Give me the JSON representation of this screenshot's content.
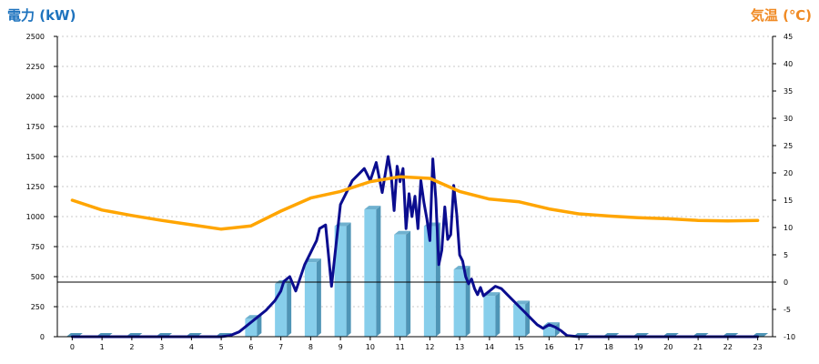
{
  "chart_data": {
    "type": "bar",
    "title": "",
    "left_axis_title": "電力 (kW)",
    "right_axis_title": "気温 (℃)",
    "categories": [
      "0",
      "1",
      "2",
      "3",
      "4",
      "5",
      "6",
      "7",
      "8",
      "9",
      "10",
      "11",
      "12",
      "13",
      "14",
      "15",
      "16",
      "17",
      "18",
      "19",
      "20",
      "21",
      "22",
      "23"
    ],
    "y_left": {
      "min": 0,
      "max": 2500,
      "ticks": [
        0,
        250,
        500,
        750,
        1000,
        1250,
        1500,
        1750,
        2000,
        2250,
        2500
      ]
    },
    "y_right": {
      "min": -10,
      "max": 45,
      "ticks": [
        -10,
        -5,
        0,
        5,
        10,
        15,
        20,
        25,
        30,
        35,
        40,
        45
      ]
    },
    "grid": true,
    "series": [
      {
        "kind": "bar",
        "axis": "left",
        "values": [
          0,
          0,
          0,
          0,
          0,
          0,
          150,
          440,
          620,
          920,
          1060,
          850,
          920,
          560,
          340,
          270,
          90,
          0,
          0,
          0,
          0,
          0,
          0,
          0
        ]
      },
      {
        "kind": "line",
        "axis": "left",
        "x": [
          0,
          1,
          2,
          3,
          4,
          5,
          5.3,
          5.6,
          5.9,
          6.2,
          6.5,
          6.8,
          7.0,
          7.1,
          7.3,
          7.5,
          7.8,
          8.0,
          8.1,
          8.2,
          8.3,
          8.5,
          8.7,
          9.0,
          9.2,
          9.4,
          9.6,
          9.8,
          10.0,
          10.2,
          10.4,
          10.6,
          10.7,
          10.8,
          10.9,
          11.0,
          11.1,
          11.2,
          11.3,
          11.4,
          11.5,
          11.6,
          11.7,
          11.8,
          11.9,
          12.0,
          12.1,
          12.2,
          12.3,
          12.4,
          12.5,
          12.6,
          12.7,
          12.8,
          12.9,
          13.0,
          13.1,
          13.2,
          13.3,
          13.4,
          13.5,
          13.6,
          13.7,
          13.8,
          14.0,
          14.2,
          14.4,
          14.6,
          14.8,
          15.0,
          15.2,
          15.4,
          15.6,
          15.8,
          16.0,
          16.2,
          16.4,
          16.6,
          17,
          18,
          19,
          20,
          21,
          22,
          23
        ],
        "values": [
          0,
          0,
          0,
          0,
          0,
          0,
          10,
          40,
          100,
          160,
          220,
          300,
          380,
          460,
          500,
          380,
          600,
          700,
          750,
          800,
          900,
          930,
          420,
          1100,
          1200,
          1300,
          1350,
          1400,
          1300,
          1450,
          1200,
          1500,
          1350,
          1050,
          1420,
          1290,
          1400,
          900,
          1190,
          1000,
          1170,
          900,
          1300,
          1120,
          980,
          800,
          1480,
          1150,
          600,
          720,
          1080,
          810,
          850,
          1260,
          1020,
          680,
          630,
          500,
          440,
          480,
          400,
          350,
          410,
          340,
          380,
          420,
          400,
          350,
          300,
          250,
          200,
          150,
          100,
          70,
          100,
          80,
          50,
          10,
          0,
          0,
          0,
          0,
          0,
          0,
          0
        ]
      },
      {
        "kind": "line",
        "axis": "right",
        "values": [
          15,
          13.2,
          12.2,
          11.3,
          10.5,
          9.7,
          10.3,
          13,
          15.4,
          16.6,
          18.4,
          19.3,
          19,
          16.6,
          15.2,
          14.7,
          13.4,
          12.5,
          12.1,
          11.8,
          11.6,
          11.3,
          11.2,
          11.3
        ]
      }
    ],
    "colors": {
      "bar_front": "#87CEEB",
      "bar_side": "#4F95B6",
      "bar_top": "#6FB1CF",
      "power_line": "#0B0D8F",
      "temp_line": "#FFA500",
      "left_title": "#1E73BE",
      "right_title": "#F08A24",
      "grid": "#C8C8C8"
    }
  }
}
